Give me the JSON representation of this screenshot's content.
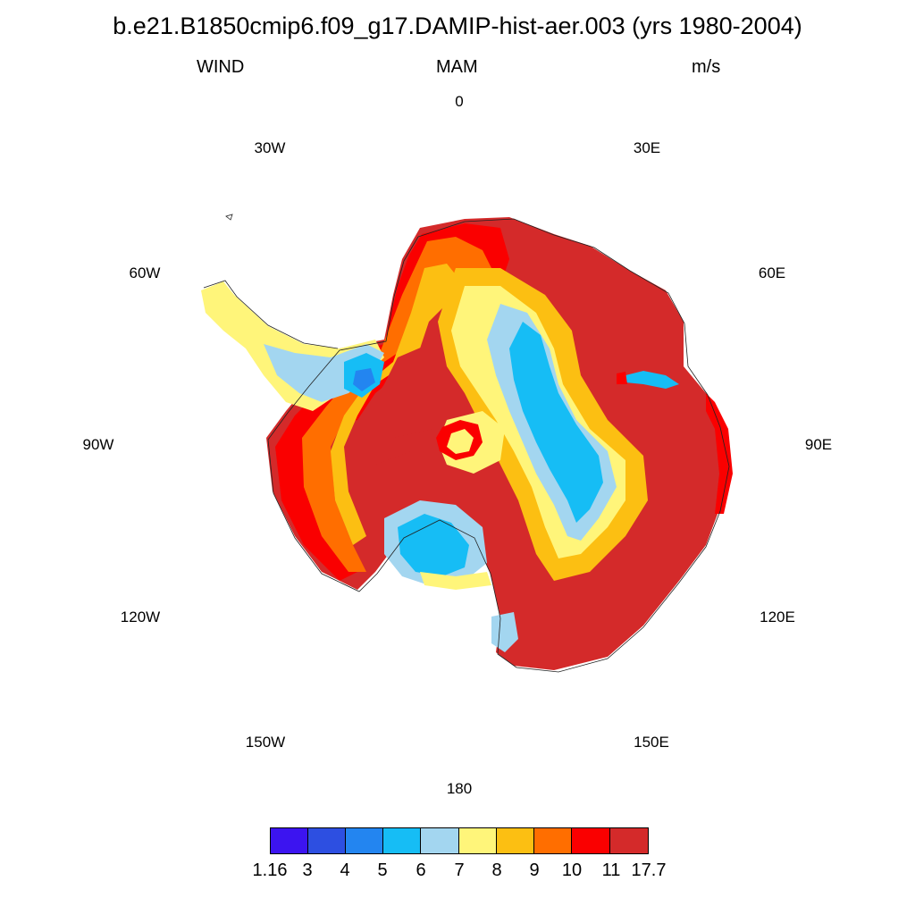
{
  "title": "b.e21.B1850cmip6.f09_g17.DAMIP-hist-aer.003 (yrs 1980-2004)",
  "subtitle": {
    "left": "WIND",
    "center": "MAM",
    "right": "m/s"
  },
  "longitude_labels": [
    "0",
    "30E",
    "60E",
    "90E",
    "120E",
    "150E",
    "180",
    "150W",
    "120W",
    "90W",
    "60W",
    "30W"
  ],
  "colorbar": {
    "labels": [
      "1.16",
      "3",
      "4",
      "5",
      "6",
      "7",
      "8",
      "9",
      "10",
      "11",
      "17.7"
    ],
    "colors": [
      "#3c14f0",
      "#2d4fe1",
      "#2385f0",
      "#16bdf5",
      "#a3d6f0",
      "#fff57a",
      "#fcbf12",
      "#ff6e00",
      "#fa0000",
      "#d42a2a"
    ]
  },
  "chart_data": {
    "type": "heatmap",
    "projection": "south polar stereographic",
    "region": "Antarctica",
    "variable": "WIND",
    "season": "MAM",
    "units": "m/s",
    "levels": [
      1.16,
      3,
      4,
      5,
      6,
      7,
      8,
      9,
      10,
      11,
      17.7
    ],
    "grid": false
  }
}
